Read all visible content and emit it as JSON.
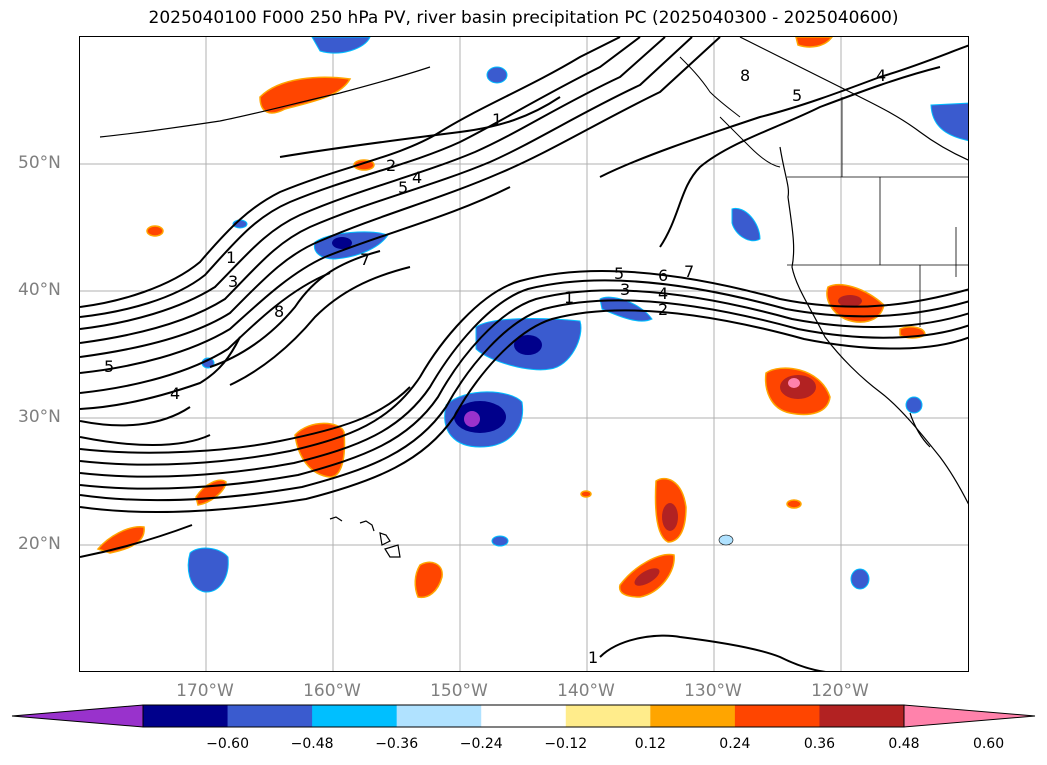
{
  "title": "2025040100 F000 250 hPa PV, river basin precipitation PC (2025040300 - 2025040600)",
  "lat_labels": [
    "50°N",
    "40°N",
    "30°N",
    "20°N"
  ],
  "lon_labels": [
    "170°W",
    "160°W",
    "150°W",
    "140°W",
    "130°W",
    "120°W"
  ],
  "colorbar": {
    "levels": [
      "-0.60",
      "-0.48",
      "-0.36",
      "-0.24",
      "-0.12",
      "0.12",
      "0.24",
      "0.36",
      "0.48",
      "0.60"
    ],
    "colors": [
      "#9932cc",
      "#00008b",
      "#3a5bcf",
      "#00bfff",
      "#b0e2ff",
      "#ffffff",
      "#ffec8b",
      "#ffa500",
      "#ff4500",
      "#b22222",
      "#ff82ab"
    ]
  },
  "map": {
    "extent_lon": [
      -180,
      -110
    ],
    "extent_lat": [
      10,
      60
    ],
    "pv_contour_labels": [
      "1",
      "2",
      "3",
      "4",
      "5",
      "6",
      "7",
      "8"
    ]
  }
}
